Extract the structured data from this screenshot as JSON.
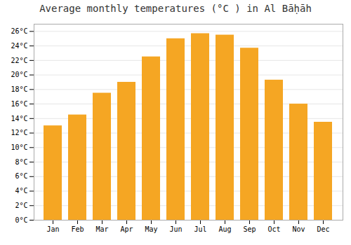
{
  "chart_data": {
    "type": "bar",
    "title": "Average monthly temperatures (°C ) in Al Bāḥāh",
    "categories": [
      "Jan",
      "Feb",
      "Mar",
      "Apr",
      "May",
      "Jun",
      "Jul",
      "Aug",
      "Sep",
      "Oct",
      "Nov",
      "Dec"
    ],
    "values": [
      13,
      14.5,
      17.5,
      19,
      22.5,
      25,
      25.7,
      25.5,
      23.7,
      19.3,
      16,
      13.5
    ],
    "color": "#F5A623",
    "ylim": [
      0,
      27
    ],
    "yticks": [
      {
        "value": 0,
        "label": "0°C"
      },
      {
        "value": 2,
        "label": "2°C"
      },
      {
        "value": 4,
        "label": "4°C"
      },
      {
        "value": 6,
        "label": "6°C"
      },
      {
        "value": 8,
        "label": "8°C"
      },
      {
        "value": 10,
        "label": "10°C"
      },
      {
        "value": 12,
        "label": "12°C"
      },
      {
        "value": 14,
        "label": "14°C"
      },
      {
        "value": 16,
        "label": "16°C"
      },
      {
        "value": 18,
        "label": "18°C"
      },
      {
        "value": 20,
        "label": "20°C"
      },
      {
        "value": 22,
        "label": "22°C"
      },
      {
        "value": 24,
        "label": "24°C"
      },
      {
        "value": 26,
        "label": "26°C"
      }
    ],
    "grid": true
  }
}
